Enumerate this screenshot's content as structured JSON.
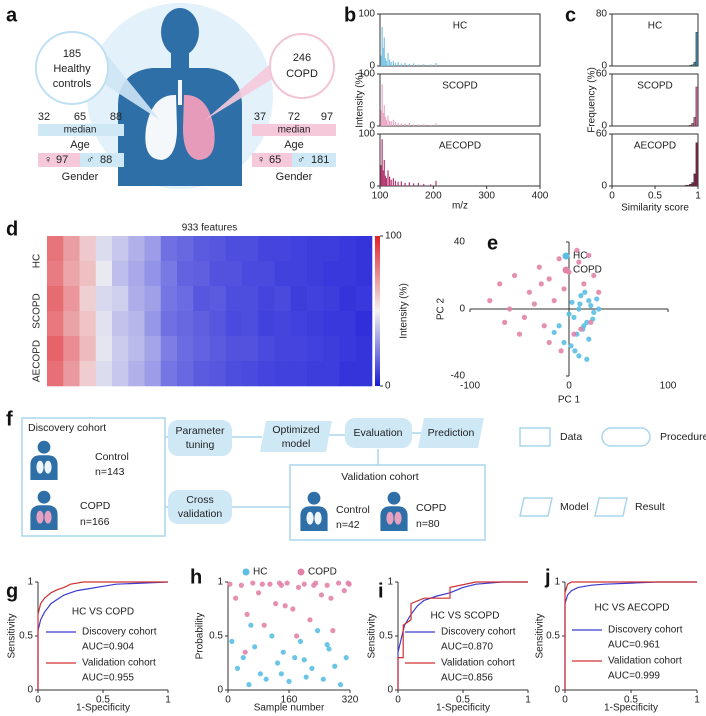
{
  "panel_labels": [
    "a",
    "b",
    "c",
    "d",
    "e",
    "f",
    "g",
    "h",
    "i",
    "j"
  ],
  "infographic": {
    "left_bubble": {
      "count": 185,
      "lines": [
        "Healthy",
        "controls"
      ]
    },
    "right_bubble": {
      "count": 246,
      "lines": [
        "COPD"
      ]
    },
    "left_stats": {
      "age": {
        "min": 32,
        "median": 65,
        "max": 88,
        "median_label": "median",
        "label": "Age"
      },
      "gender": {
        "female_symbol": "♀",
        "female": 97,
        "male_symbol": "♂",
        "male": 88,
        "label": "Gender"
      }
    },
    "right_stats": {
      "age": {
        "min": 37,
        "median": 72,
        "max": 97,
        "median_label": "median",
        "label": "Age"
      },
      "gender": {
        "female_symbol": "♀",
        "female": 65,
        "male_symbol": "♂",
        "male": 181,
        "label": "Gender"
      }
    }
  },
  "workflow": {
    "discovery": {
      "title": "Discovery cohort",
      "groups": [
        {
          "label": "Control",
          "n": "n=143"
        },
        {
          "label": "COPD",
          "n": "n=166"
        }
      ]
    },
    "parameter_tuning": [
      "Parameter",
      "tuning"
    ],
    "optimized_model": [
      "Optimized",
      "model"
    ],
    "evaluation": "Evaluation",
    "prediction": "Prediction",
    "cross_validation": [
      "Cross",
      "validation"
    ],
    "validation": {
      "title": "Validation cohort",
      "groups": [
        {
          "label": "Control",
          "n": "n=42"
        },
        {
          "label": "COPD",
          "n": "n=80"
        }
      ]
    },
    "legend": [
      "Data",
      "Procedure",
      "Model",
      "Result"
    ]
  },
  "chart_data": [
    {
      "type": "spectrum",
      "label": "HC",
      "color": "#7cc4e4",
      "xlim": [
        100,
        400
      ],
      "ylim": [
        0,
        100
      ],
      "yticks": [
        0,
        100
      ],
      "x": [
        102,
        104,
        106,
        108,
        110,
        112,
        115,
        118,
        121,
        125,
        129,
        134,
        140,
        147,
        155,
        163,
        172,
        182,
        195,
        205
      ],
      "values": [
        20,
        75,
        35,
        55,
        15,
        10,
        25,
        12,
        8,
        10,
        6,
        8,
        5,
        6,
        4,
        5,
        3,
        4,
        3,
        6
      ]
    },
    {
      "type": "spectrum",
      "label": "SCOPD",
      "color": "#eaa7c5",
      "xlim": [
        100,
        400
      ],
      "ylim": [
        0,
        100
      ],
      "yticks": [
        0,
        100
      ],
      "ylabel": "Intensity (%)",
      "x": [
        102,
        104,
        106,
        108,
        110,
        112,
        115,
        118,
        121,
        125,
        129,
        134,
        140,
        147,
        155,
        163,
        172,
        182,
        195,
        205
      ],
      "values": [
        30,
        80,
        25,
        40,
        18,
        12,
        20,
        10,
        9,
        12,
        8,
        6,
        5,
        4,
        6,
        3,
        3,
        4,
        2,
        5
      ]
    },
    {
      "type": "spectrum",
      "label": "AECOPD",
      "color": "#b3336e",
      "xlim": [
        100,
        400
      ],
      "ylim": [
        0,
        100
      ],
      "yticks": [
        0,
        100
      ],
      "xticks": [
        100,
        200,
        300,
        400
      ],
      "xlabel": "m/z",
      "x": [
        102,
        104,
        106,
        108,
        110,
        112,
        115,
        118,
        121,
        125,
        129,
        134,
        140,
        147,
        155,
        163,
        172,
        182,
        195,
        205
      ],
      "values": [
        40,
        90,
        30,
        50,
        20,
        15,
        30,
        18,
        12,
        15,
        10,
        8,
        9,
        6,
        7,
        5,
        6,
        4,
        3,
        10
      ]
    },
    {
      "type": "histogram",
      "label": "HC",
      "color": "#3f7f93",
      "xlim": [
        0,
        1
      ],
      "ylim": [
        0,
        80
      ],
      "yticks": [
        0,
        80
      ],
      "bins": [
        0.8,
        0.825,
        0.85,
        0.875,
        0.9,
        0.925,
        0.95,
        0.975,
        1
      ],
      "values": [
        0,
        0,
        0,
        0,
        1,
        2,
        6,
        52
      ]
    },
    {
      "type": "histogram",
      "label": "SCOPD",
      "color": "#b8638a",
      "xlim": [
        0,
        1
      ],
      "ylim": [
        0,
        60
      ],
      "yticks": [
        0,
        60
      ],
      "ylabel": "Frequency (%)",
      "bins": [
        0.8,
        0.825,
        0.85,
        0.875,
        0.9,
        0.925,
        0.95,
        0.975,
        1
      ],
      "values": [
        0,
        0,
        0,
        0,
        1,
        3,
        10,
        45
      ]
    },
    {
      "type": "histogram",
      "label": "AECOPD",
      "color": "#7a2446",
      "xlim": [
        0,
        1
      ],
      "ylim": [
        0,
        60
      ],
      "yticks": [
        0,
        60
      ],
      "xticks": [
        0,
        0.5,
        1
      ],
      "xlabel": "Similarity score",
      "bins": [
        0.8,
        0.825,
        0.85,
        0.875,
        0.9,
        0.925,
        0.95,
        0.975,
        1
      ],
      "values": [
        0,
        0,
        1,
        1,
        2,
        4,
        14,
        50
      ]
    },
    {
      "type": "heatmap",
      "title": "933 features",
      "row_labels": [
        "HC",
        null,
        "SCOPD",
        null,
        "AECOPD",
        null
      ],
      "zlim": [
        0,
        100
      ],
      "zticks": [
        0,
        100
      ],
      "zlabel": "Intensity (%)",
      "values": [
        [
          80,
          70,
          60,
          45,
          40,
          35,
          30,
          20,
          18,
          15,
          14,
          12,
          12,
          10,
          10,
          9,
          8,
          8,
          7,
          6
        ],
        [
          78,
          68,
          62,
          48,
          38,
          33,
          28,
          22,
          17,
          16,
          13,
          13,
          11,
          11,
          9,
          9,
          8,
          7,
          7,
          6
        ],
        [
          82,
          72,
          58,
          44,
          42,
          34,
          31,
          21,
          19,
          14,
          15,
          12,
          12,
          10,
          11,
          8,
          9,
          8,
          6,
          7
        ],
        [
          79,
          69,
          61,
          46,
          39,
          36,
          29,
          20,
          18,
          16,
          14,
          11,
          12,
          9,
          10,
          9,
          8,
          7,
          7,
          5
        ],
        [
          84,
          74,
          63,
          47,
          41,
          37,
          32,
          23,
          19,
          17,
          15,
          13,
          13,
          11,
          10,
          10,
          9,
          8,
          7,
          6
        ],
        [
          81,
          71,
          59,
          45,
          40,
          35,
          30,
          21,
          18,
          15,
          14,
          12,
          11,
          10,
          9,
          9,
          8,
          8,
          6,
          6
        ]
      ]
    },
    {
      "type": "scatter",
      "xlim": [
        -100,
        100
      ],
      "ylim": [
        -40,
        40
      ],
      "xticks": [
        -100,
        0,
        100
      ],
      "yticks": [
        -40,
        0,
        40
      ],
      "xlabel": "PC 1",
      "ylabel": "PC 2",
      "series": [
        {
          "name": "HC",
          "color": "#5bbfe3",
          "x": [
            5,
            10,
            15,
            20,
            25,
            8,
            12,
            18,
            22,
            -5,
            0,
            3,
            14,
            20,
            28,
            6,
            -10,
            16,
            24,
            10,
            2,
            -15,
            30,
            18,
            11
          ],
          "y": [
            -5,
            0,
            -10,
            5,
            -2,
            -15,
            8,
            -8,
            2,
            -20,
            -3,
            4,
            -12,
            -18,
            6,
            -25,
            -10,
            10,
            -6,
            -28,
            -22,
            -14,
            0,
            -30,
            3
          ]
        },
        {
          "name": "COPD",
          "color": "#e283a8",
          "x": [
            -80,
            -70,
            -60,
            -55,
            -45,
            -40,
            -30,
            -25,
            -20,
            -15,
            -10,
            -5,
            0,
            5,
            10,
            15,
            20,
            25,
            30,
            -65,
            -50,
            -35,
            -20,
            -8,
            12,
            22,
            8,
            -28
          ],
          "y": [
            5,
            15,
            0,
            20,
            -5,
            10,
            25,
            -10,
            18,
            5,
            30,
            12,
            22,
            -15,
            28,
            15,
            32,
            20,
            10,
            -8,
            -15,
            3,
            -20,
            -25,
            -12,
            -8,
            35,
            15
          ]
        }
      ]
    },
    {
      "type": "line",
      "title": "HC VS COPD",
      "xlim": [
        0,
        1
      ],
      "ylim": [
        0,
        1
      ],
      "xticks": [
        0,
        0.5,
        1
      ],
      "yticks": [
        0,
        0.5,
        1
      ],
      "xlabel": "1-Specificity",
      "ylabel": "Sensitivity",
      "series": [
        {
          "name": "Discovery cohort",
          "color": "#3b3bd0",
          "annotation": "AUC=0.904",
          "x": [
            0,
            0,
            0.02,
            0.05,
            0.1,
            0.15,
            0.2,
            0.3,
            0.4,
            0.5,
            0.6,
            0.8,
            1
          ],
          "y": [
            0,
            0.55,
            0.65,
            0.72,
            0.8,
            0.84,
            0.88,
            0.92,
            0.94,
            0.96,
            0.98,
            0.99,
            1
          ]
        },
        {
          "name": "Validation cohort",
          "color": "#d03030",
          "annotation": "AUC=0.955",
          "x": [
            0,
            0,
            0.02,
            0.05,
            0.1,
            0.15,
            0.2,
            0.25,
            0.35,
            0.5,
            1
          ],
          "y": [
            0,
            0.7,
            0.8,
            0.85,
            0.9,
            0.93,
            0.95,
            0.98,
            1,
            1,
            1
          ]
        }
      ]
    },
    {
      "type": "scatter",
      "xlim": [
        0,
        320
      ],
      "ylim": [
        0,
        1
      ],
      "xticks": [
        0,
        160,
        320
      ],
      "yticks": [
        0,
        0.5,
        1
      ],
      "xlabel": "Sample number",
      "ylabel": "Probability",
      "series": [
        {
          "name": "HC",
          "color": "#5bbfe3",
          "x": [
            10,
            25,
            40,
            55,
            70,
            85,
            100,
            115,
            130,
            145,
            160,
            175,
            190,
            205,
            220,
            235,
            250,
            265,
            280,
            295,
            310,
            60,
            140,
            200,
            260
          ],
          "y": [
            0.45,
            0.2,
            0.3,
            0.05,
            0.4,
            0.15,
            0.1,
            0.5,
            0.25,
            0.35,
            0.08,
            0.3,
            0.45,
            0.12,
            0.2,
            0.55,
            0.1,
            0.38,
            0.22,
            0.05,
            0.3,
            0.6,
            0.15,
            0.28,
            0.42
          ]
        },
        {
          "name": "COPD",
          "color": "#e283a8",
          "x": [
            5,
            20,
            35,
            50,
            65,
            80,
            95,
            110,
            125,
            140,
            155,
            170,
            185,
            200,
            215,
            230,
            245,
            260,
            275,
            290,
            305,
            318,
            45,
            90,
            135,
            180,
            225,
            270,
            315,
            150
          ],
          "y": [
            0.98,
            0.85,
            0.97,
            0.7,
            0.99,
            0.9,
            0.6,
            0.98,
            0.8,
            0.97,
            0.99,
            0.75,
            0.95,
            0.98,
            0.65,
            0.99,
            0.88,
            0.97,
            0.55,
            0.99,
            0.92,
            0.98,
            0.35,
            0.98,
            0.99,
            0.5,
            0.97,
            0.85,
            0.99,
            0.78
          ]
        }
      ]
    },
    {
      "type": "line",
      "title": "HC VS SCOPD",
      "xlim": [
        0,
        1
      ],
      "ylim": [
        0,
        1
      ],
      "xticks": [
        0,
        0.5,
        1
      ],
      "yticks": [
        0,
        0.5,
        1
      ],
      "xlabel": "1-Specificity",
      "ylabel": "Sensitivity",
      "series": [
        {
          "name": "Discovery cohort",
          "color": "#3b3bd0",
          "annotation": "AUC=0.870",
          "x": [
            0,
            0,
            0.03,
            0.05,
            0.1,
            0.15,
            0.2,
            0.3,
            0.4,
            0.5,
            0.6,
            0.8,
            1
          ],
          "y": [
            0,
            0.35,
            0.5,
            0.6,
            0.7,
            0.78,
            0.83,
            0.87,
            0.9,
            0.95,
            0.98,
            1,
            1
          ]
        },
        {
          "name": "Validation cohort",
          "color": "#d03030",
          "annotation": "AUC=0.856",
          "x": [
            0,
            0,
            0.04,
            0.04,
            0.1,
            0.1,
            0.2,
            0.4,
            0.4,
            0.6,
            1
          ],
          "y": [
            0,
            0.3,
            0.3,
            0.6,
            0.65,
            0.8,
            0.85,
            0.85,
            0.95,
            1,
            1
          ]
        }
      ]
    },
    {
      "type": "line",
      "title": "HC VS AECOPD",
      "xlim": [
        0,
        1
      ],
      "ylim": [
        0,
        1
      ],
      "xticks": [
        0,
        0.5,
        1
      ],
      "yticks": [
        0,
        0.5,
        1
      ],
      "xlabel": "1-Specificity",
      "ylabel": "Sensitivity",
      "series": [
        {
          "name": "Discovery cohort",
          "color": "#3b3bd0",
          "annotation": "AUC=0.961",
          "x": [
            0,
            0,
            0.02,
            0.05,
            0.1,
            0.2,
            0.3,
            0.5,
            0.7,
            1
          ],
          "y": [
            0,
            0.8,
            0.88,
            0.92,
            0.95,
            0.97,
            0.98,
            0.99,
            1,
            1
          ]
        },
        {
          "name": "Validation cohort",
          "color": "#d03030",
          "annotation": "AUC=0.999",
          "x": [
            0,
            0,
            0.02,
            0.05,
            0.1,
            1
          ],
          "y": [
            0,
            0.9,
            0.98,
            1,
            1,
            1
          ]
        }
      ]
    }
  ]
}
